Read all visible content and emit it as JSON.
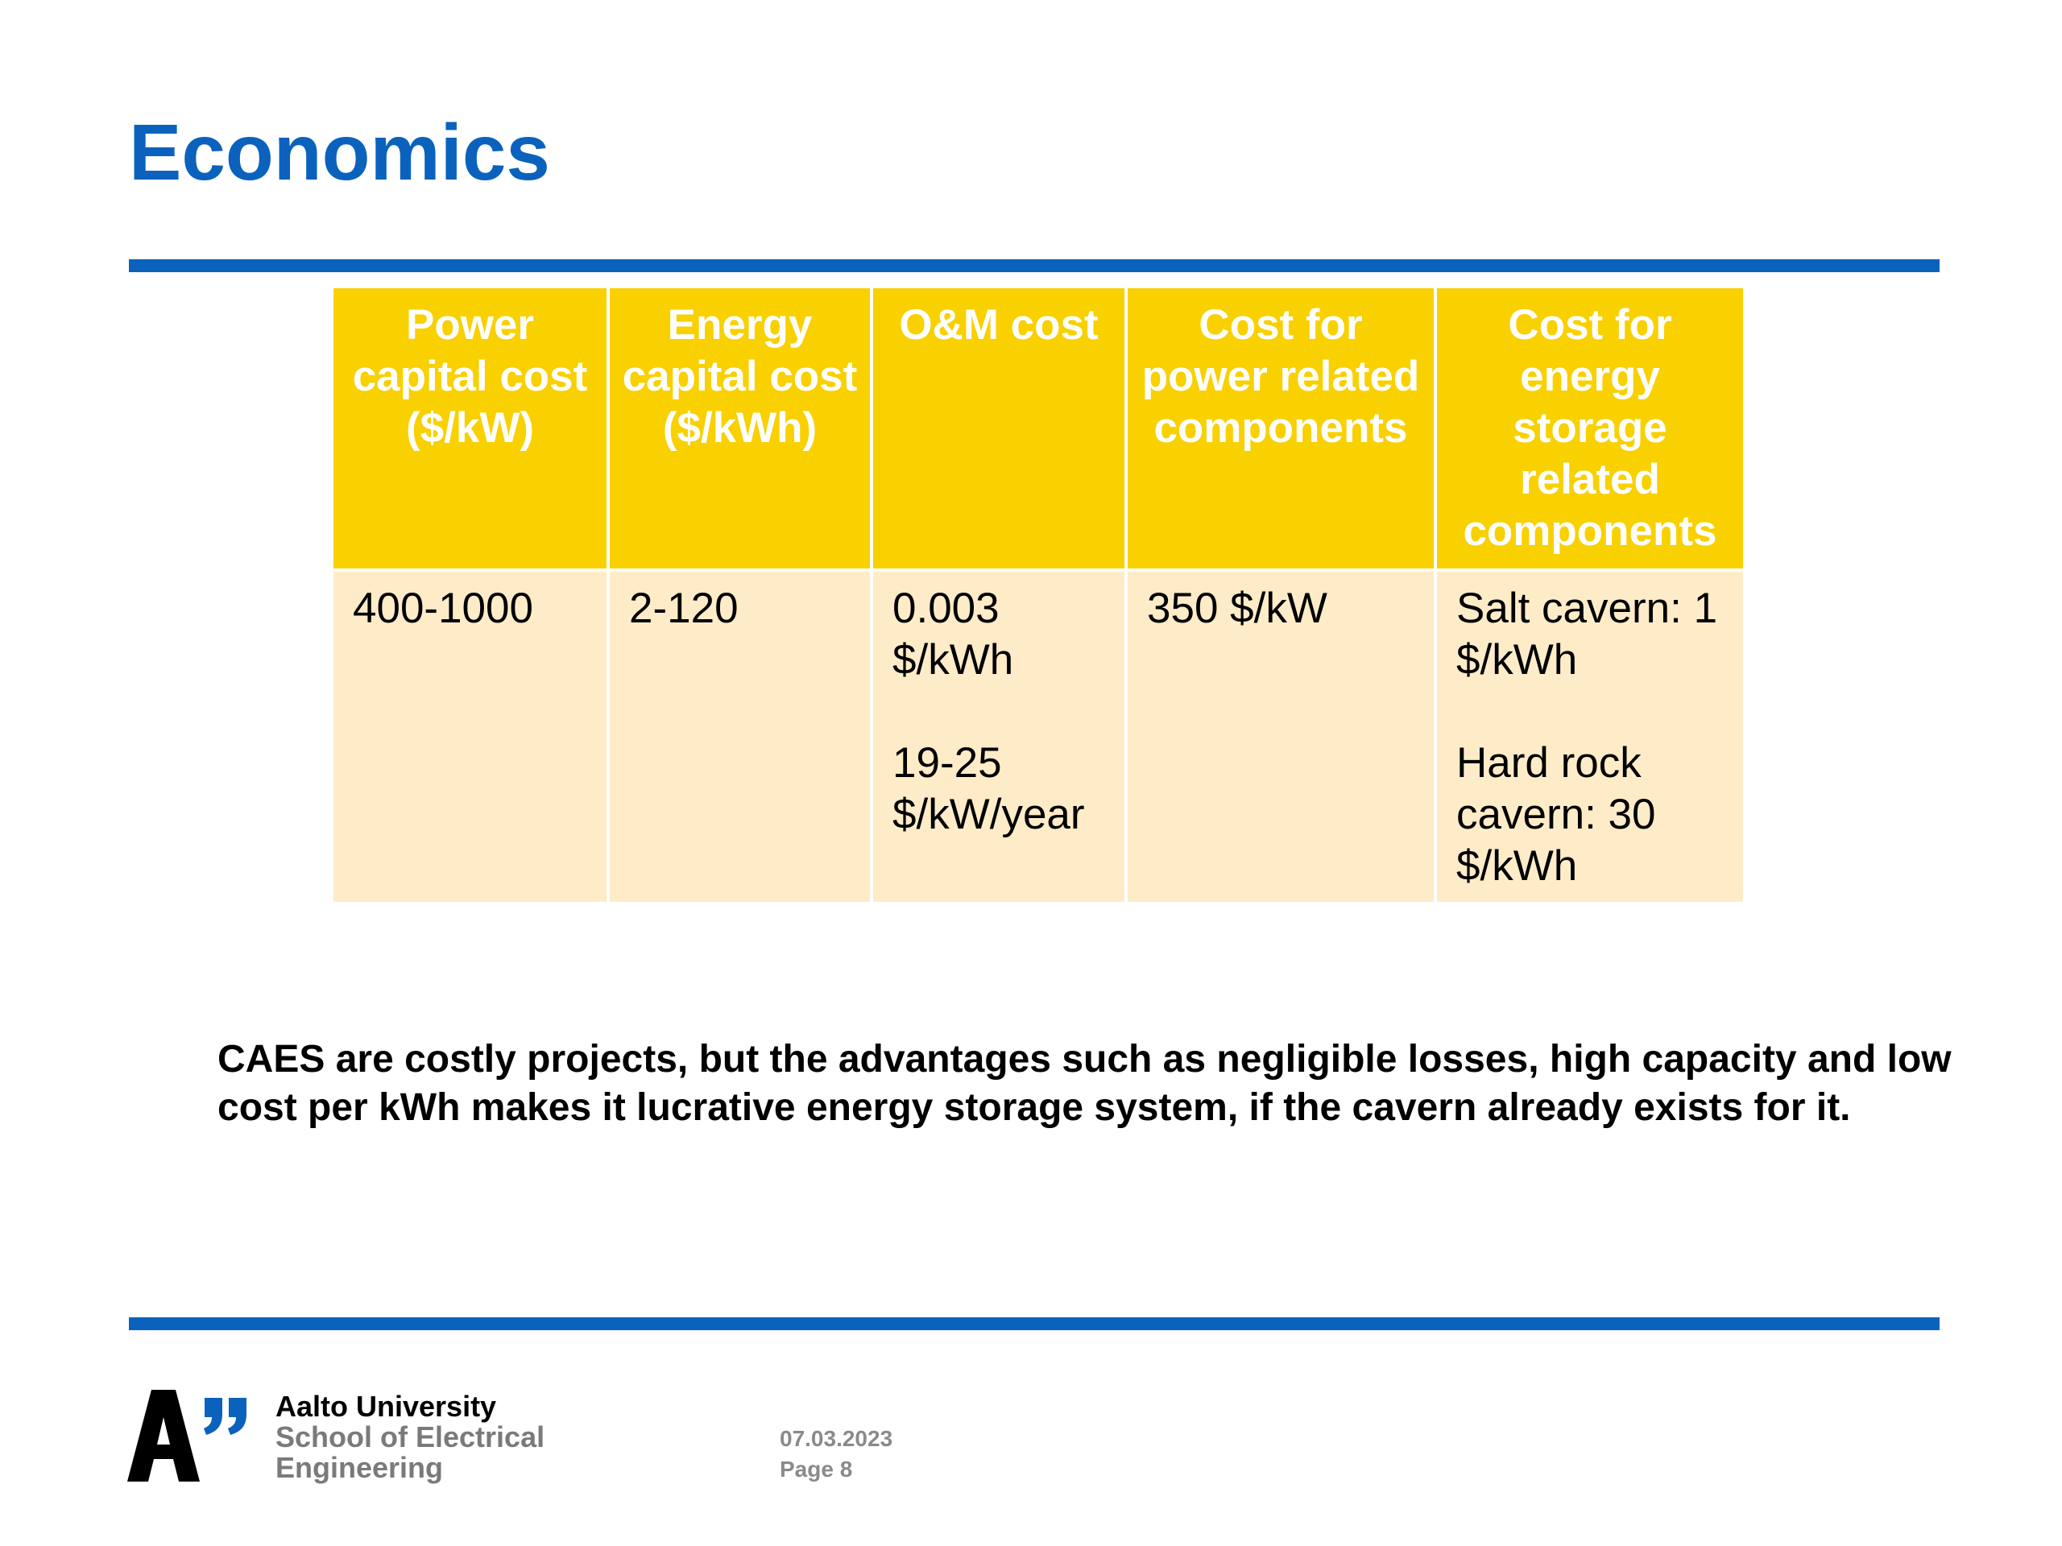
{
  "slide": {
    "title": "Economics",
    "conclusion": "CAES are costly projects, but the advantages such as negligible losses, high capacity and low cost per kWh makes it lucrative energy storage system, if the cavern already exists for it."
  },
  "table": {
    "headers": [
      "Power capital cost ($/kW)",
      "Energy capital cost ($/kWh)",
      "O&M cost",
      "Cost for power related components",
      "Cost for energy storage related components"
    ],
    "row": {
      "power_capital": "400-1000",
      "energy_capital": "2-120",
      "om_cost": [
        "0.003 $/kWh",
        "19-25 $/kW/year"
      ],
      "power_components": "350 $/kW",
      "storage_components": [
        "Salt cavern: 1 $/kWh",
        "Hard rock cavern: 30 $/kWh"
      ]
    }
  },
  "footer": {
    "university": "Aalto University",
    "school_line1": "School of Electrical",
    "school_line2": "Engineering",
    "date": "07.03.2023",
    "page": "Page 8",
    "logo_icon": "aalto-a-quote-logo"
  },
  "colors": {
    "accent_blue": "#0b62bd",
    "header_yellow": "#f9d000",
    "cell_cream": "#feecc8"
  }
}
